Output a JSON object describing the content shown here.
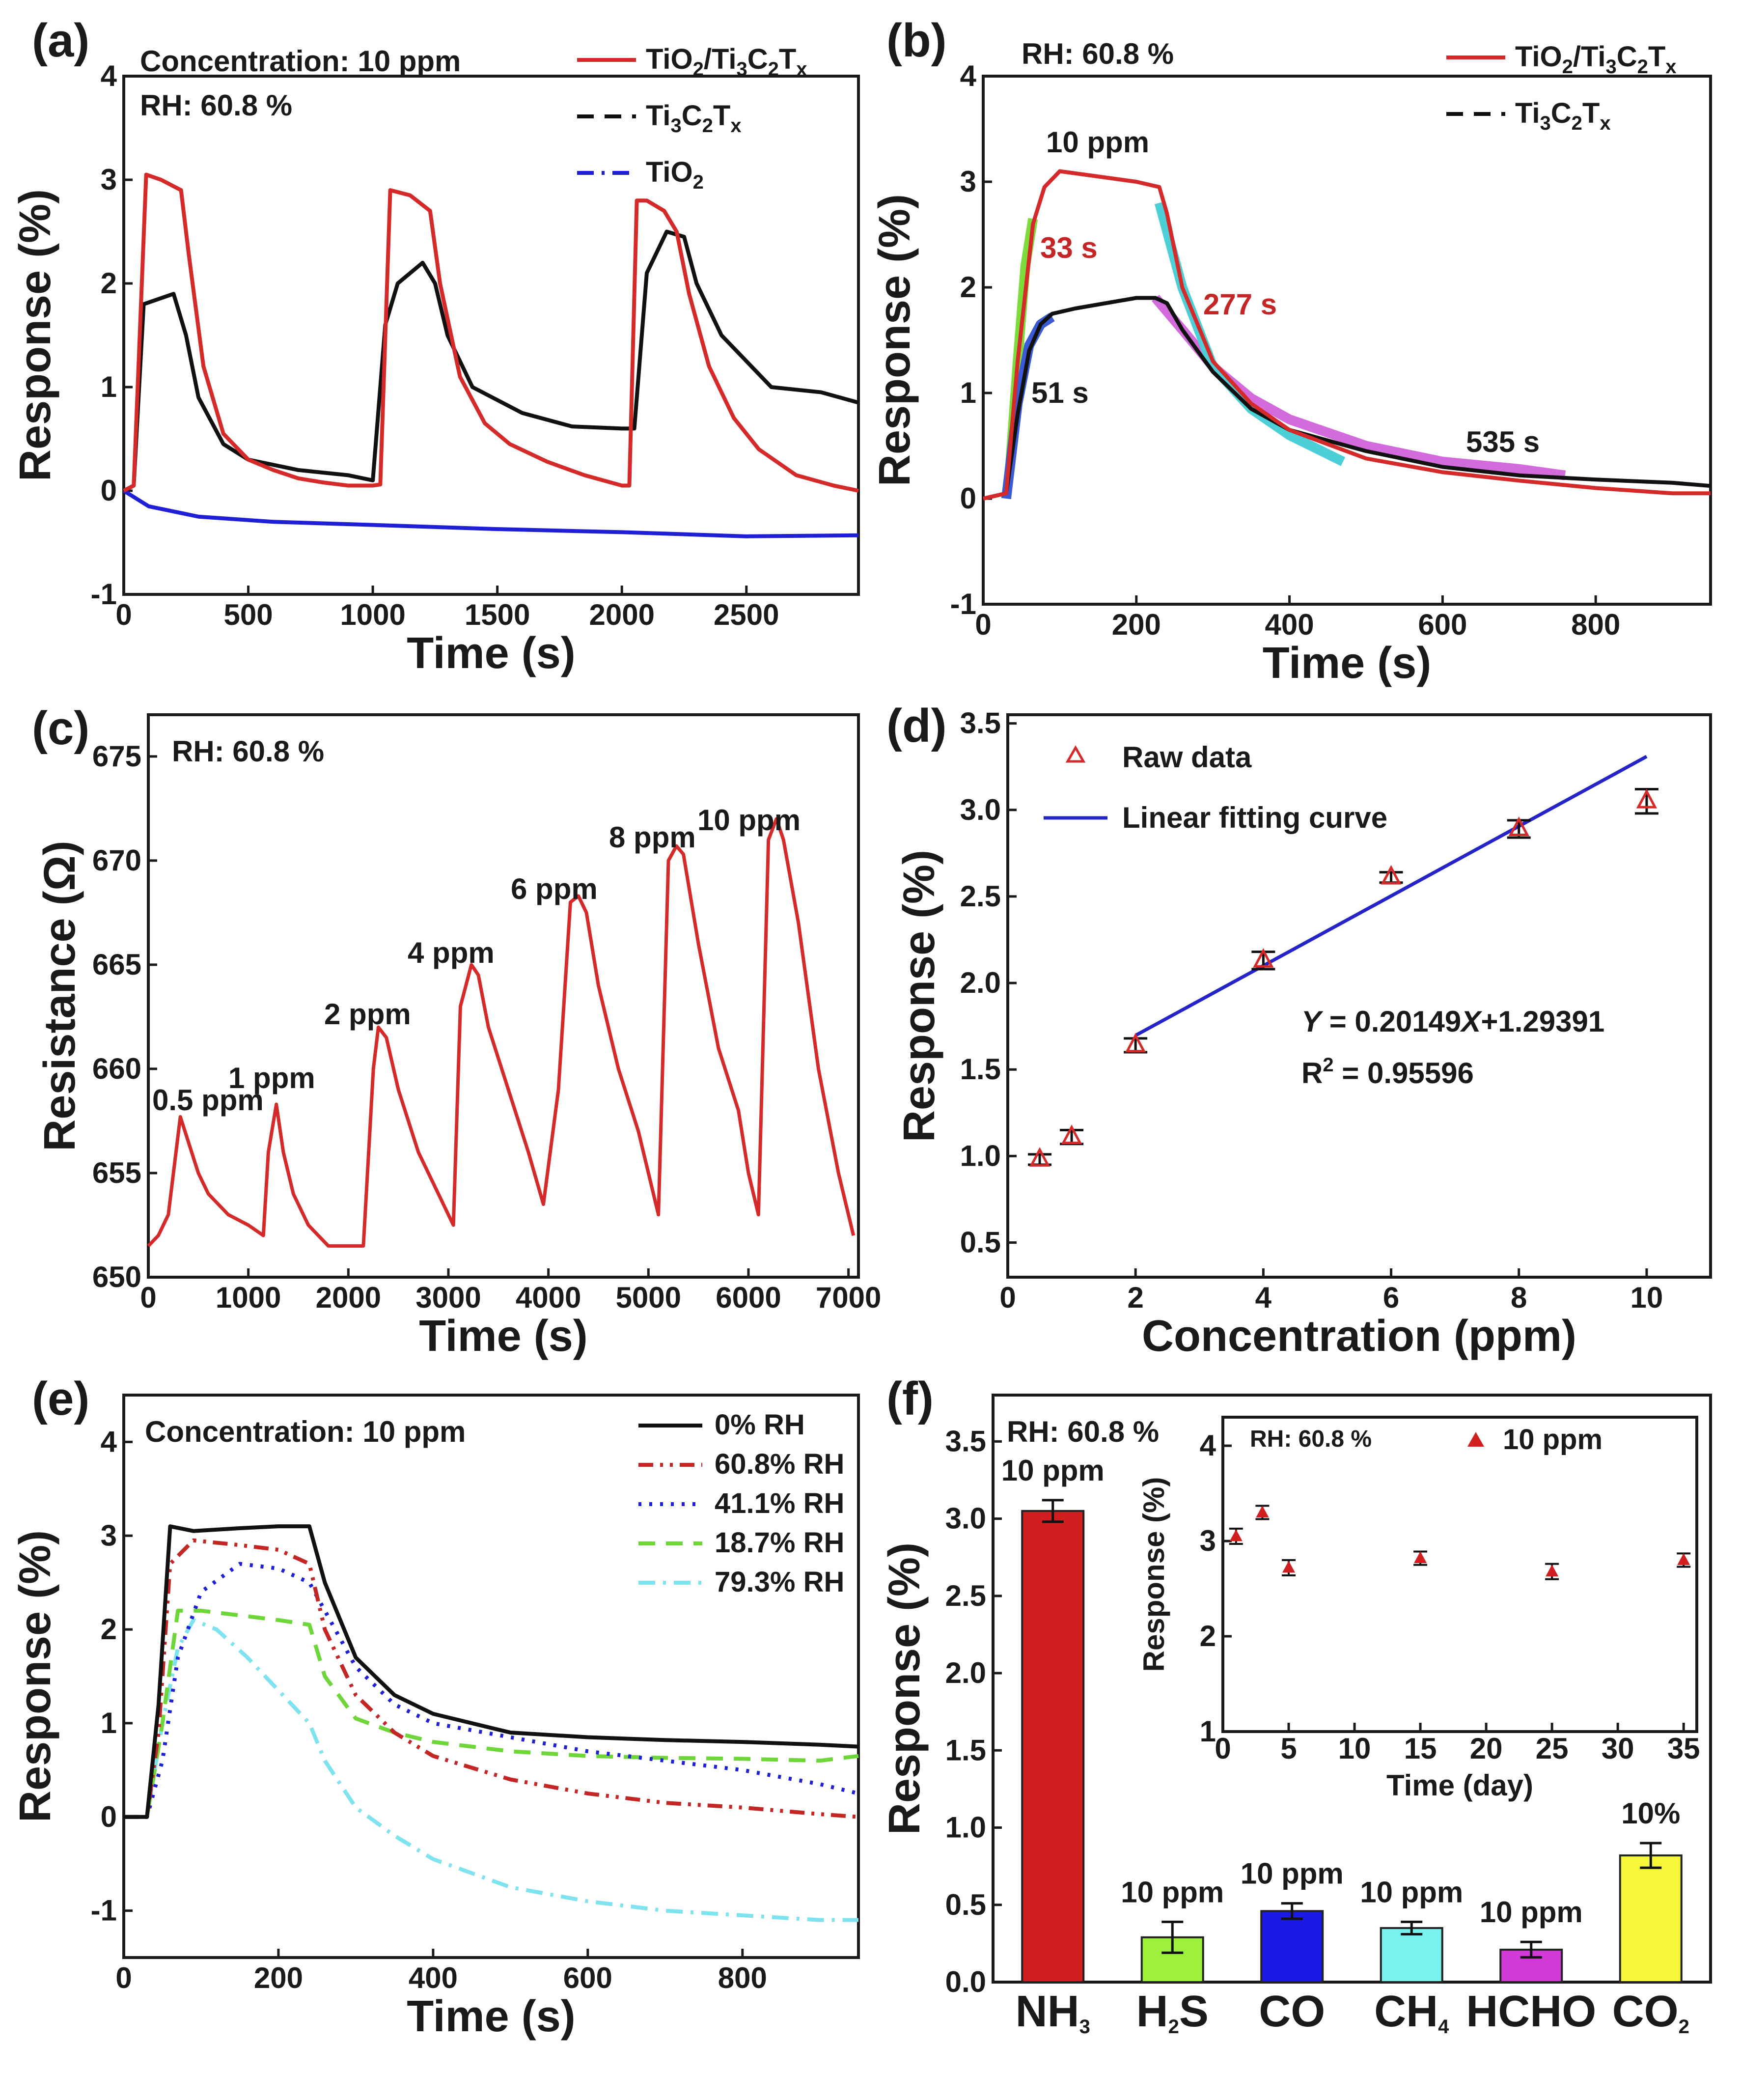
{
  "chart_data": [
    {
      "panel": "(a)",
      "type": "line",
      "annotations": [
        "Concentration: 10 ppm",
        "RH: 60.8 %"
      ],
      "xlabel": "Time (s)",
      "ylabel": "Response (%)",
      "xlim": [
        0,
        2950
      ],
      "ylim": [
        -1,
        4
      ],
      "xticks": [
        "0",
        "500",
        "1000",
        "1500",
        "2000",
        "2500"
      ],
      "yticks": [
        "-1",
        "0",
        "1",
        "2",
        "3",
        "4"
      ],
      "legend": [
        {
          "main": "TiO",
          "sub": "2",
          "rest": "/Ti",
          "sub2": "3",
          "rest2": "C",
          "sub3": "2",
          "rest3": "T",
          "sub4": "x",
          "color": "#d42a2a",
          "dash": "solid"
        },
        {
          "main": "Ti",
          "sub": "3",
          "rest": "C",
          "sub2": "2",
          "rest2": "T",
          "sub3": "x",
          "rest3": "",
          "sub4": "",
          "color": "#111111",
          "dash": "dash"
        },
        {
          "main": "TiO",
          "sub": "2",
          "rest": "",
          "sub2": "",
          "rest2": "",
          "sub3": "",
          "rest3": "",
          "sub4": "",
          "color": "#1f1fd6",
          "dash": "dashdot"
        }
      ],
      "series": [
        {
          "name": "TiO2/Ti3C2Tx",
          "color": "#d42a2a",
          "x": [
            0,
            40,
            90,
            150,
            230,
            260,
            320,
            400,
            500,
            600,
            700,
            800,
            900,
            1000,
            1030,
            1070,
            1150,
            1230,
            1270,
            1350,
            1450,
            1550,
            1700,
            1850,
            2000,
            2030,
            2060,
            2100,
            2170,
            2220,
            2270,
            2350,
            2450,
            2550,
            2700,
            2850,
            2950
          ],
          "y": [
            0,
            0.05,
            3.05,
            3.0,
            2.9,
            2.3,
            1.2,
            0.55,
            0.3,
            0.2,
            0.12,
            0.08,
            0.05,
            0.05,
            0.06,
            2.9,
            2.85,
            2.7,
            2.0,
            1.1,
            0.65,
            0.45,
            0.28,
            0.15,
            0.05,
            0.05,
            2.8,
            2.8,
            2.7,
            2.5,
            1.9,
            1.2,
            0.7,
            0.4,
            0.15,
            0.05,
            0.0
          ]
        },
        {
          "name": "Ti3C2Tx",
          "color": "#111111",
          "x": [
            0,
            40,
            80,
            200,
            250,
            300,
            400,
            500,
            700,
            900,
            1000,
            1050,
            1100,
            1200,
            1250,
            1300,
            1400,
            1600,
            1800,
            2000,
            2050,
            2100,
            2180,
            2250,
            2300,
            2400,
            2520,
            2600,
            2800,
            2950
          ],
          "y": [
            0,
            0.05,
            1.8,
            1.9,
            1.5,
            0.9,
            0.45,
            0.3,
            0.2,
            0.15,
            0.1,
            1.6,
            2.0,
            2.2,
            2.0,
            1.5,
            1.0,
            0.75,
            0.62,
            0.6,
            0.6,
            2.1,
            2.5,
            2.45,
            2.0,
            1.5,
            1.2,
            1.0,
            0.95,
            0.85
          ]
        },
        {
          "name": "TiO2",
          "color": "#1f1fd6",
          "x": [
            0,
            100,
            300,
            600,
            1000,
            1500,
            2000,
            2500,
            2950
          ],
          "y": [
            0,
            -0.15,
            -0.25,
            -0.3,
            -0.33,
            -0.37,
            -0.4,
            -0.44,
            -0.43
          ]
        }
      ]
    },
    {
      "panel": "(b)",
      "type": "line",
      "annotations": [
        "RH: 60.8 %",
        "10 ppm",
        "33 s",
        "277 s",
        "51 s",
        "535 s"
      ],
      "xlabel": "Time (s)",
      "ylabel": "Response (%)",
      "xlim": [
        0,
        950
      ],
      "ylim": [
        -1,
        4
      ],
      "xticks": [
        "0",
        "200",
        "400",
        "600",
        "800"
      ],
      "yticks": [
        "-1",
        "0",
        "1",
        "2",
        "3",
        "4"
      ],
      "legend": [
        {
          "main": "TiO",
          "sub": "2",
          "rest": "/Ti",
          "sub2": "3",
          "rest2": "C",
          "sub3": "2",
          "rest3": "T",
          "sub4": "x",
          "color": "#d42a2a",
          "dash": "solid"
        },
        {
          "main": "Ti",
          "sub": "3",
          "rest": "C",
          "sub2": "2",
          "rest2": "T",
          "sub3": "x",
          "rest3": "",
          "sub4": "",
          "color": "#111111",
          "dash": "dash"
        }
      ],
      "series": [
        {
          "name": "TiO2/Ti3C2Tx",
          "color": "#d42a2a",
          "x": [
            0,
            30,
            45,
            65,
            80,
            100,
            150,
            200,
            230,
            240,
            260,
            300,
            350,
            400,
            500,
            600,
            700,
            800,
            900,
            950
          ],
          "y": [
            0,
            0.05,
            1.3,
            2.6,
            2.95,
            3.1,
            3.05,
            3.0,
            2.95,
            2.7,
            2.0,
            1.3,
            0.9,
            0.65,
            0.38,
            0.25,
            0.17,
            0.1,
            0.05,
            0.05
          ]
        },
        {
          "name": "Ti3C2Tx",
          "color": "#111111",
          "x": [
            0,
            30,
            45,
            60,
            75,
            90,
            120,
            200,
            225,
            240,
            260,
            300,
            350,
            400,
            500,
            600,
            700,
            800,
            900,
            950
          ],
          "y": [
            0,
            0.05,
            0.8,
            1.4,
            1.65,
            1.75,
            1.8,
            1.9,
            1.9,
            1.85,
            1.6,
            1.2,
            0.85,
            0.65,
            0.45,
            0.3,
            0.22,
            0.18,
            0.15,
            0.12
          ]
        },
        {
          "name": "fit-response-33s",
          "color": "#7ddb3c",
          "x": [
            35,
            45,
            55,
            65
          ],
          "y": [
            0.3,
            1.3,
            2.2,
            2.65
          ]
        },
        {
          "name": "fit-response-51s",
          "color": "#3b5bd6",
          "x": [
            30,
            45,
            60,
            75,
            90
          ],
          "y": [
            0.0,
            0.9,
            1.45,
            1.65,
            1.72
          ]
        },
        {
          "name": "fit-recovery-277s",
          "color": "#4ccfd6",
          "x": [
            230,
            260,
            300,
            350,
            400,
            470
          ],
          "y": [
            2.8,
            2.0,
            1.25,
            0.85,
            0.6,
            0.35
          ]
        },
        {
          "name": "fit-recovery-535s",
          "color": "#d46bdc",
          "x": [
            225,
            260,
            300,
            350,
            400,
            500,
            600,
            700,
            760
          ],
          "y": [
            1.9,
            1.6,
            1.25,
            0.95,
            0.75,
            0.5,
            0.35,
            0.28,
            0.22
          ]
        }
      ]
    },
    {
      "panel": "(c)",
      "type": "line",
      "annotations": [
        "RH: 60.8 %"
      ],
      "peak_labels": [
        "0.5 ppm",
        "1 ppm",
        "2 ppm",
        "4 ppm",
        "6 ppm",
        "8 ppm",
        "10 ppm"
      ],
      "xlabel": "Time (s)",
      "ylabel": "Resistance (Ω)",
      "xlim": [
        0,
        7100
      ],
      "ylim": [
        650,
        677
      ],
      "xticks": [
        "0",
        "1000",
        "2000",
        "3000",
        "4000",
        "5000",
        "6000",
        "7000"
      ],
      "yticks": [
        "650",
        "655",
        "660",
        "665",
        "670",
        "675"
      ],
      "series": [
        {
          "name": "Resistance",
          "color": "#d42a2a",
          "x": [
            0,
            100,
            200,
            320,
            400,
            500,
            600,
            800,
            1000,
            1150,
            1200,
            1280,
            1350,
            1450,
            1600,
            1800,
            2000,
            2150,
            2250,
            2300,
            2380,
            2500,
            2700,
            2900,
            3050,
            3120,
            3230,
            3300,
            3400,
            3600,
            3800,
            3950,
            4100,
            4220,
            4300,
            4380,
            4500,
            4700,
            4900,
            5000,
            5100,
            5200,
            5280,
            5350,
            5500,
            5700,
            5900,
            6000,
            6100,
            6200,
            6280,
            6350,
            6500,
            6700,
            6900,
            7050
          ],
          "y": [
            651.5,
            652,
            653,
            657.7,
            656.5,
            655,
            654,
            653,
            652.5,
            652,
            656,
            658.3,
            656,
            654,
            652.5,
            651.5,
            651.5,
            651.5,
            660,
            662,
            661.5,
            659,
            656,
            654,
            652.5,
            663,
            665,
            664.5,
            662,
            659,
            656,
            653.5,
            659,
            668,
            668.3,
            667.5,
            664,
            660,
            657,
            655,
            653,
            670,
            670.7,
            670.3,
            666,
            661,
            658,
            655,
            653,
            671,
            672,
            671,
            667,
            660,
            655,
            652
          ]
        }
      ]
    },
    {
      "panel": "(d)",
      "type": "scatter",
      "xlabel": "Concentration (ppm)",
      "ylabel": "Response (%)",
      "xlim": [
        0,
        11
      ],
      "ylim": [
        0.3,
        3.55
      ],
      "xticks": [
        "0",
        "2",
        "4",
        "6",
        "8",
        "10"
      ],
      "yticks": [
        "0.5",
        "1.0",
        "1.5",
        "2.0",
        "2.5",
        "3.0",
        "3.5"
      ],
      "legend": [
        "Raw data",
        "Linear fitting curve"
      ],
      "x": [
        0.5,
        1,
        2,
        4,
        6,
        8,
        10
      ],
      "y": [
        0.98,
        1.11,
        1.64,
        2.13,
        2.61,
        2.89,
        3.05
      ],
      "error": [
        0.03,
        0.04,
        0.04,
        0.05,
        0.03,
        0.05,
        0.07
      ],
      "fit": {
        "x": [
          2,
          10
        ],
        "slope": 0.20149,
        "intercept": 1.29391
      },
      "equation": {
        "Y": "Y",
        "mid": " = 0.20149",
        "X": "X",
        "rest": "+1.29391"
      },
      "r2": {
        "base": "R",
        "sup": "2",
        "rest": " = 0.95596"
      }
    },
    {
      "panel": "(e)",
      "type": "line",
      "annotations": [
        "Concentration: 10 ppm"
      ],
      "xlabel": "Time (s)",
      "ylabel": "Response (%)",
      "xlim": [
        0,
        950
      ],
      "ylim": [
        -1.5,
        4.5
      ],
      "xticks": [
        "0",
        "200",
        "400",
        "600",
        "800"
      ],
      "yticks": [
        "-1",
        "0",
        "1",
        "2",
        "3",
        "4"
      ],
      "series": [
        {
          "name": "0% RH",
          "color": "#111111",
          "dash": "solid",
          "x": [
            0,
            30,
            45,
            60,
            90,
            150,
            200,
            240,
            260,
            300,
            350,
            400,
            500,
            600,
            700,
            800,
            900,
            950
          ],
          "y": [
            0,
            0,
            1.2,
            3.1,
            3.05,
            3.08,
            3.1,
            3.1,
            2.5,
            1.7,
            1.3,
            1.1,
            0.9,
            0.85,
            0.82,
            0.8,
            0.77,
            0.75
          ]
        },
        {
          "name": "60.8% RH",
          "color": "#c42525",
          "dash": "dashdotdot",
          "x": [
            0,
            30,
            45,
            60,
            90,
            150,
            200,
            240,
            260,
            300,
            350,
            400,
            500,
            600,
            700,
            800,
            900,
            950
          ],
          "y": [
            0,
            0,
            0.9,
            2.7,
            2.95,
            2.9,
            2.85,
            2.7,
            2.0,
            1.3,
            0.9,
            0.65,
            0.4,
            0.25,
            0.15,
            0.1,
            0.03,
            0.0
          ]
        },
        {
          "name": "41.1% RH",
          "color": "#1f1fd6",
          "dash": "dot",
          "x": [
            0,
            30,
            50,
            70,
            100,
            150,
            200,
            240,
            260,
            300,
            350,
            400,
            500,
            600,
            700,
            800,
            900,
            950
          ],
          "y": [
            0,
            0,
            0.6,
            1.7,
            2.4,
            2.7,
            2.65,
            2.5,
            2.2,
            1.6,
            1.2,
            1.0,
            0.85,
            0.7,
            0.6,
            0.5,
            0.35,
            0.25
          ]
        },
        {
          "name": "18.7% RH",
          "color": "#6fd63a",
          "dash": "dash",
          "x": [
            0,
            30,
            50,
            70,
            100,
            150,
            200,
            240,
            260,
            300,
            350,
            400,
            500,
            600,
            700,
            800,
            900,
            950
          ],
          "y": [
            0,
            0,
            1.0,
            2.2,
            2.2,
            2.15,
            2.1,
            2.05,
            1.5,
            1.05,
            0.9,
            0.8,
            0.7,
            0.65,
            0.63,
            0.62,
            0.6,
            0.65
          ]
        },
        {
          "name": "79.3% RH",
          "color": "#7fe3ef",
          "dash": "dashdot",
          "x": [
            0,
            30,
            50,
            70,
            90,
            120,
            160,
            200,
            240,
            260,
            300,
            350,
            400,
            500,
            600,
            700,
            800,
            900,
            950
          ],
          "y": [
            0,
            0,
            1.0,
            1.8,
            2.1,
            2.0,
            1.7,
            1.35,
            1.0,
            0.6,
            0.1,
            -0.2,
            -0.45,
            -0.75,
            -0.9,
            -1.0,
            -1.05,
            -1.1,
            -1.1
          ]
        }
      ]
    },
    {
      "panel": "(f)",
      "type": "bar",
      "annotations": [
        "RH: 60.8 %"
      ],
      "ylabel": "Response (%)",
      "ylim": [
        0,
        3.8
      ],
      "yticks": [
        "0.0",
        "0.5",
        "1.0",
        "1.5",
        "2.0",
        "2.5",
        "3.0",
        "3.5"
      ],
      "categories": [
        {
          "base": "NH",
          "sub": "3",
          "rest": ""
        },
        {
          "base": "H",
          "sub": "2",
          "rest": "S"
        },
        {
          "base": "CO",
          "sub": "",
          "rest": ""
        },
        {
          "base": "CH",
          "sub": "4",
          "rest": ""
        },
        {
          "base": "HCHO",
          "sub": "",
          "rest": ""
        },
        {
          "base": "CO",
          "sub": "2",
          "rest": ""
        }
      ],
      "values": [
        3.05,
        0.29,
        0.46,
        0.35,
        0.21,
        0.82
      ],
      "errors": [
        0.07,
        0.1,
        0.05,
        0.04,
        0.05,
        0.08
      ],
      "colors": [
        "#d11f1f",
        "#9ef03a",
        "#1a1ae6",
        "#78f2ee",
        "#d13ad6",
        "#f7f73a"
      ],
      "bar_labels": [
        "10 ppm",
        "10 ppm",
        "10 ppm",
        "10 ppm",
        "10 ppm",
        "10%"
      ],
      "inset": {
        "annotation": "RH: 60.8 %",
        "legend": "10 ppm",
        "xlabel": "Time (day)",
        "ylabel": "Response (%)",
        "xlim": [
          0,
          36
        ],
        "ylim": [
          1,
          4.3
        ],
        "xticks": [
          "0",
          "5",
          "10",
          "15",
          "20",
          "25",
          "30",
          "35"
        ],
        "yticks": [
          "1",
          "2",
          "3",
          "4"
        ],
        "x": [
          1,
          3,
          5,
          15,
          25,
          35
        ],
        "y": [
          3.05,
          3.3,
          2.72,
          2.82,
          2.68,
          2.8
        ],
        "error": [
          0.08,
          0.07,
          0.08,
          0.07,
          0.08,
          0.07
        ],
        "color": "#d11f1f"
      }
    }
  ]
}
